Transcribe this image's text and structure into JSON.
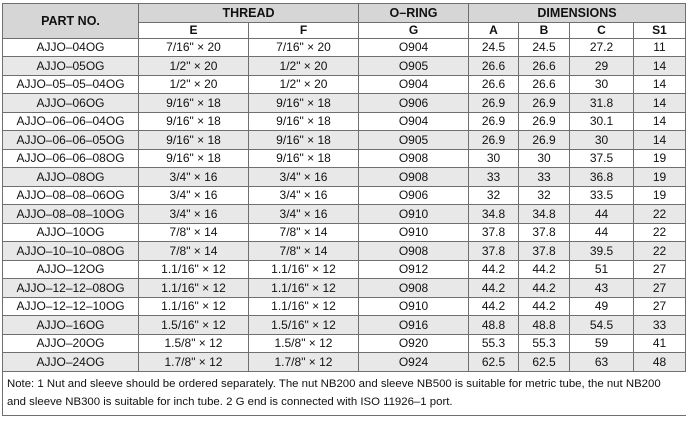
{
  "header": {
    "part_no": "PART NO.",
    "thread": "THREAD",
    "oring": "O–RING",
    "dimensions": "DIMENSIONS",
    "sub": [
      "E",
      "F",
      "G",
      "A",
      "B",
      "C",
      "S1"
    ]
  },
  "rows": [
    {
      "part": "AJJO–04OG",
      "e": "7/16\" × 20",
      "f": "7/16\" × 20",
      "g": "O904",
      "a": "24.5",
      "b": "24.5",
      "c": "27.2",
      "s1": "11"
    },
    {
      "part": "AJJO–05OG",
      "e": "1/2\" × 20",
      "f": "1/2\" × 20",
      "g": "O905",
      "a": "26.6",
      "b": "26.6",
      "c": "29",
      "s1": "14"
    },
    {
      "part": "AJJO–05–05–04OG",
      "e": "1/2\" × 20",
      "f": "1/2\" × 20",
      "g": "O904",
      "a": "26.6",
      "b": "26.6",
      "c": "30",
      "s1": "14"
    },
    {
      "part": "AJJO–06OG",
      "e": "9/16\" × 18",
      "f": "9/16\" × 18",
      "g": "O906",
      "a": "26.9",
      "b": "26.9",
      "c": "31.8",
      "s1": "14"
    },
    {
      "part": "AJJO–06–06–04OG",
      "e": "9/16\" × 18",
      "f": "9/16\" × 18",
      "g": "O904",
      "a": "26.9",
      "b": "26.9",
      "c": "30.1",
      "s1": "14"
    },
    {
      "part": "AJJO–06–06–05OG",
      "e": "9/16\" × 18",
      "f": "9/16\" × 18",
      "g": "O905",
      "a": "26.9",
      "b": "26.9",
      "c": "30",
      "s1": "14"
    },
    {
      "part": "AJJO–06–06–08OG",
      "e": "9/16\" × 18",
      "f": "9/16\" × 18",
      "g": "O908",
      "a": "30",
      "b": "30",
      "c": "37.5",
      "s1": "19"
    },
    {
      "part": "AJJO–08OG",
      "e": "3/4\" × 16",
      "f": "3/4\" × 16",
      "g": "O908",
      "a": "33",
      "b": "33",
      "c": "36.8",
      "s1": "19"
    },
    {
      "part": "AJJO–08–08–06OG",
      "e": "3/4\" × 16",
      "f": "3/4\" × 16",
      "g": "O906",
      "a": "32",
      "b": "32",
      "c": "33.5",
      "s1": "19"
    },
    {
      "part": "AJJO–08–08–10OG",
      "e": "3/4\" × 16",
      "f": "3/4\" × 16",
      "g": "O910",
      "a": "34.8",
      "b": "34.8",
      "c": "44",
      "s1": "22"
    },
    {
      "part": "AJJO–10OG",
      "e": "7/8\" × 14",
      "f": "7/8\" × 14",
      "g": "O910",
      "a": "37.8",
      "b": "37.8",
      "c": "44",
      "s1": "22"
    },
    {
      "part": "AJJO–10–10–08OG",
      "e": "7/8\" × 14",
      "f": "7/8\" × 14",
      "g": "O908",
      "a": "37.8",
      "b": "37.8",
      "c": "39.5",
      "s1": "22"
    },
    {
      "part": "AJJO–12OG",
      "e": "1.1/16\" × 12",
      "f": "1.1/16\" × 12",
      "g": "O912",
      "a": "44.2",
      "b": "44.2",
      "c": "51",
      "s1": "27"
    },
    {
      "part": "AJJO–12–12–08OG",
      "e": "1.1/16\" × 12",
      "f": "1.1/16\" × 12",
      "g": "O908",
      "a": "44.2",
      "b": "44.2",
      "c": "43",
      "s1": "27"
    },
    {
      "part": "AJJO–12–12–10OG",
      "e": "1.1/16\" × 12",
      "f": "1.1/16\" × 12",
      "g": "O910",
      "a": "44.2",
      "b": "44.2",
      "c": "49",
      "s1": "27"
    },
    {
      "part": "AJJO–16OG",
      "e": "1.5/16\" × 12",
      "f": "1.5/16\" × 12",
      "g": "O916",
      "a": "48.8",
      "b": "48.8",
      "c": "54.5",
      "s1": "33"
    },
    {
      "part": "AJJO–20OG",
      "e": "1.5/8\" × 12",
      "f": "1.5/8\" × 12",
      "g": "O920",
      "a": "55.3",
      "b": "55.3",
      "c": "59",
      "s1": "41"
    },
    {
      "part": "AJJO–24OG",
      "e": "1.7/8\" × 12",
      "f": "1.7/8\" × 12",
      "g": "O924",
      "a": "62.5",
      "b": "62.5",
      "c": "63",
      "s1": "48"
    }
  ],
  "note": "Note: 1  Nut and sleeve should be ordered separately. The nut NB200 and sleeve NB500 is suitable for metric tube, the nut NB200 and sleeve NB300 is suitable for inch tube.  2 G end is connected with ISO 11926–1 port."
}
